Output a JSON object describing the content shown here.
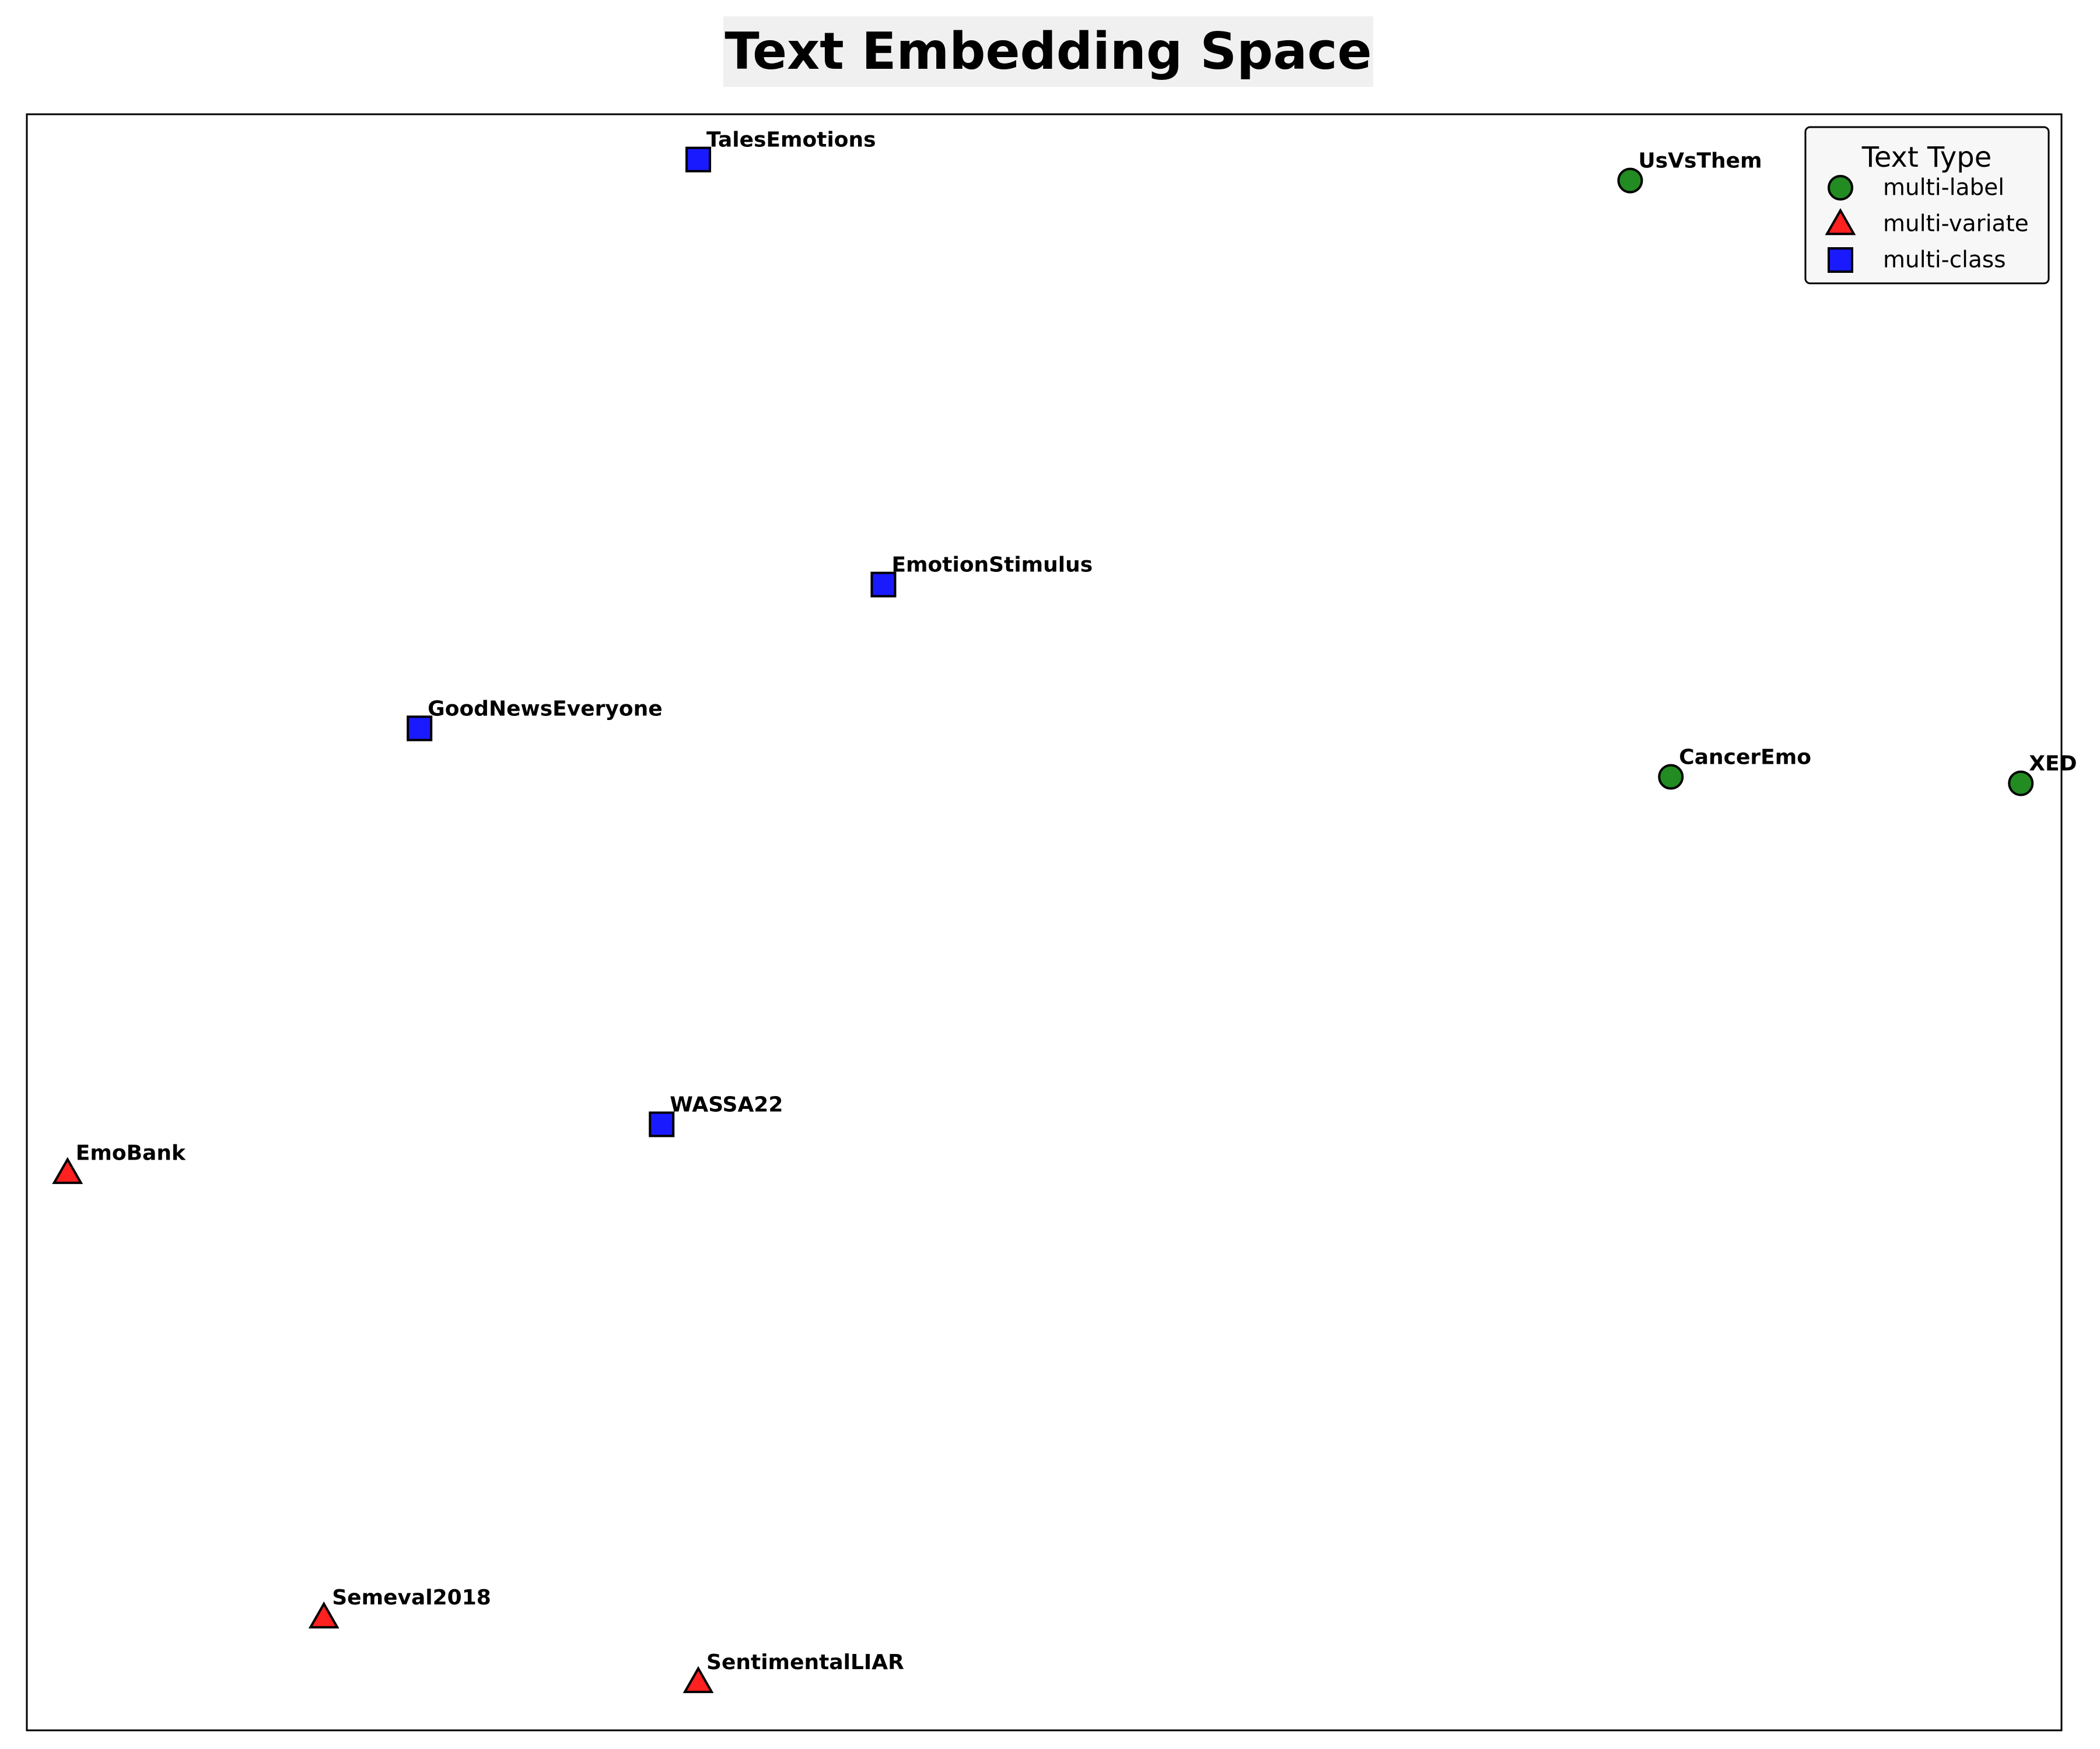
{
  "chart_data": {
    "type": "scatter",
    "title": "Text Embedding Space",
    "xlabel": "",
    "ylabel": "",
    "xlim": [
      0,
      100
    ],
    "ylim": [
      0,
      100
    ],
    "grid": false,
    "axis_ticks": false,
    "legend": {
      "title": "Text Type",
      "placement": "top-right",
      "entries": [
        "multi-label",
        "multi-variate",
        "multi-class"
      ]
    },
    "series": [
      {
        "name": "multi-label",
        "marker": "circle",
        "color": "#228b22",
        "points": [
          {
            "label": "UsVsThem",
            "x": 78.8,
            "y": 95.9
          },
          {
            "label": "CancerEmo",
            "x": 80.8,
            "y": 59.0
          },
          {
            "label": "XED",
            "x": 98.0,
            "y": 58.6
          }
        ]
      },
      {
        "name": "multi-variate",
        "marker": "triangle",
        "color": "#ff2020",
        "points": [
          {
            "label": "EmoBank",
            "x": 2.0,
            "y": 34.5
          },
          {
            "label": "Semeval2018",
            "x": 14.6,
            "y": 7.0
          },
          {
            "label": "SentimentalLIAR",
            "x": 33.0,
            "y": 3.0
          }
        ]
      },
      {
        "name": "multi-class",
        "marker": "square",
        "color": "#1a1aff",
        "points": [
          {
            "label": "TalesEmotions",
            "x": 33.0,
            "y": 97.2
          },
          {
            "label": "EmotionStimulus",
            "x": 42.1,
            "y": 70.9
          },
          {
            "label": "GoodNewsEveryone",
            "x": 19.3,
            "y": 62.0
          },
          {
            "label": "WASSA22",
            "x": 31.2,
            "y": 37.5
          }
        ]
      }
    ]
  }
}
